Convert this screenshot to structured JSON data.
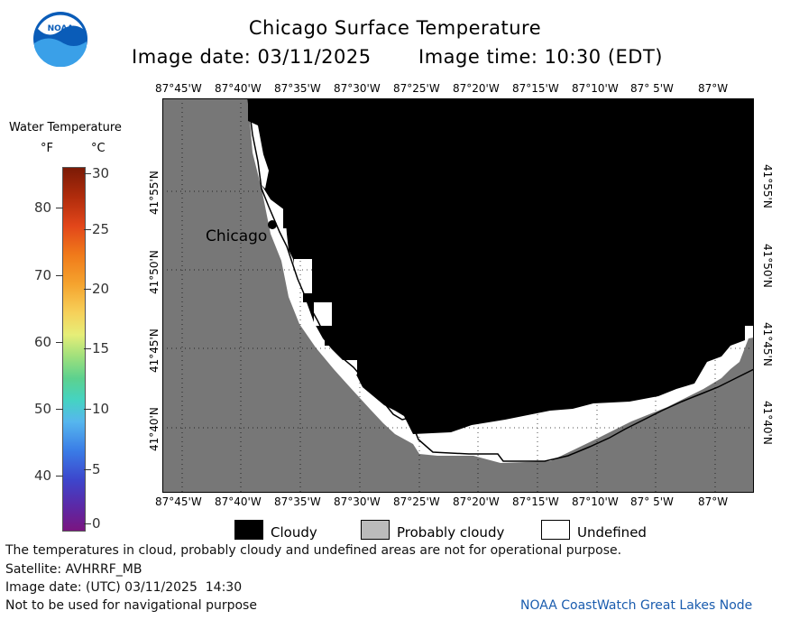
{
  "header": {
    "title": "Chicago Surface Temperature",
    "date_label": "Image date: 03/11/2025",
    "time_label": "Image time: 10:30 (EDT)"
  },
  "logo": {
    "text": "NOAA",
    "icon": "noaa-logo"
  },
  "map": {
    "lon_labels": [
      "87°45'W",
      "87°40'W",
      "87°35'W",
      "87°30'W",
      "87°25'W",
      "87°20'W",
      "87°15'W",
      "87°10'W",
      "87° 5'W",
      "87°W"
    ],
    "lat_labels": [
      "41°55'N",
      "41°50'N",
      "41°45'N",
      "41°40'N"
    ],
    "city_label": "Chicago",
    "colors": {
      "land": "#777777",
      "cloudy": "#000000",
      "undefined": "#ffffff"
    }
  },
  "colorbar": {
    "title": "Water Temperature",
    "unit_f": "°F",
    "unit_c": "°C",
    "f_ticks": [
      "80",
      "70",
      "60",
      "50",
      "40"
    ],
    "c_ticks": [
      "30",
      "25",
      "20",
      "15",
      "10",
      "5",
      "0"
    ]
  },
  "legend": [
    {
      "label": "Cloudy",
      "color": "#000000"
    },
    {
      "label": "Probably cloudy",
      "color": "#bbbbbb"
    },
    {
      "label": "Undefined",
      "color": "#ffffff"
    }
  ],
  "footer": {
    "line1": "The temperatures in cloud, probably cloudy and undefined areas are not for operational purpose.",
    "line2": "Satellite: AVHRRF_MB",
    "line3": "Image date: (UTC) 03/11/2025  14:30",
    "line4": "Not to be used for navigational purpose",
    "credit": "NOAA CoastWatch Great Lakes Node"
  }
}
